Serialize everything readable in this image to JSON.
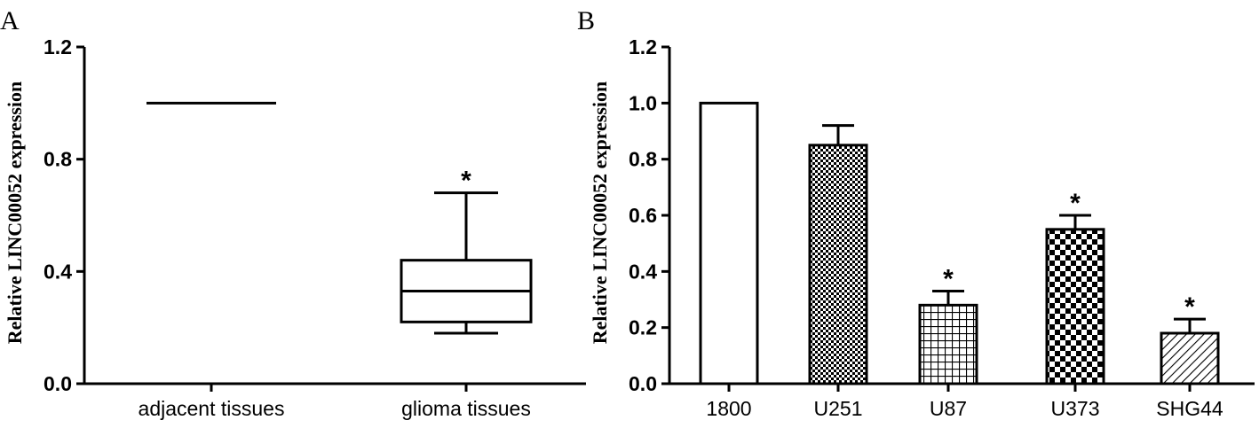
{
  "chart_data": [
    {
      "panel": "A",
      "type": "box",
      "ylabel": "Relative LINC00052 expression",
      "ylim": [
        0.0,
        1.2
      ],
      "yticks": [
        "0.0",
        "0.4",
        "0.8",
        "1.2"
      ],
      "categories": [
        "adjacent tissues",
        "glioma tissues"
      ],
      "boxes": [
        {
          "category": "adjacent tissues",
          "min": 1.0,
          "q1": 1.0,
          "median": 1.0,
          "q3": 1.0,
          "max": 1.0,
          "significance": ""
        },
        {
          "category": "glioma tissues",
          "min": 0.18,
          "q1": 0.22,
          "median": 0.33,
          "q3": 0.44,
          "max": 0.68,
          "significance": "*"
        }
      ]
    },
    {
      "panel": "B",
      "type": "bar",
      "ylabel": "Relative LINC00052 expression",
      "ylim": [
        0.0,
        1.2
      ],
      "yticks": [
        "0.0",
        "0.2",
        "0.4",
        "0.6",
        "0.8",
        "1.0",
        "1.2"
      ],
      "categories": [
        "1800",
        "U251",
        "U87",
        "U373",
        "SHG44"
      ],
      "values": [
        1.0,
        0.85,
        0.28,
        0.55,
        0.18
      ],
      "errors": [
        0.0,
        0.07,
        0.05,
        0.05,
        0.05
      ],
      "patterns": [
        "solid-white",
        "fine-checker",
        "grid",
        "coarse-checker",
        "diagonal"
      ],
      "significance": [
        "",
        "",
        "*",
        "*",
        "*"
      ]
    }
  ]
}
